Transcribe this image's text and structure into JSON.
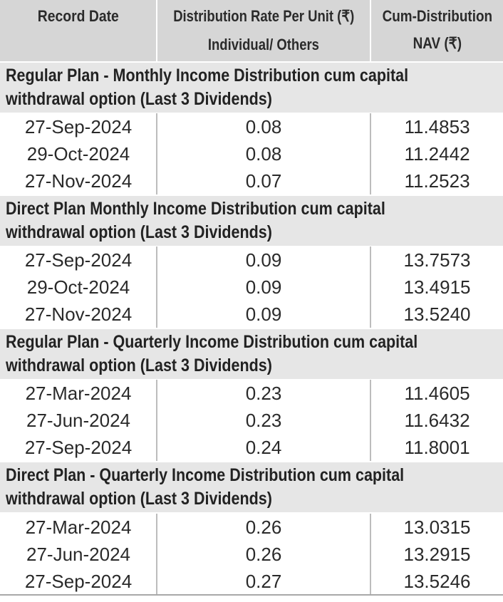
{
  "header": {
    "col1": "Record Date",
    "col2_line1": "Distribution Rate Per Unit  (₹)",
    "col2_line2": "Individual/ Others",
    "col3_line1": "Cum-Distribution",
    "col3_line2": "NAV (₹)"
  },
  "sections": [
    {
      "title_line1": "Regular Plan - Monthly Income Distribution cum capital",
      "title_line2": "withdrawal option (Last 3 Dividends)",
      "rows": [
        {
          "date": "27-Sep-2024",
          "rate": "0.08",
          "nav": "11.4853"
        },
        {
          "date": "29-Oct-2024",
          "rate": "0.08",
          "nav": "11.2442"
        },
        {
          "date": "27-Nov-2024",
          "rate": "0.07",
          "nav": "11.2523"
        }
      ]
    },
    {
      "title_line1": "Direct Plan Monthly Income Distribution cum capital",
      "title_line2": "withdrawal option (Last 3 Dividends)",
      "rows": [
        {
          "date": "27-Sep-2024",
          "rate": "0.09",
          "nav": "13.7573"
        },
        {
          "date": "29-Oct-2024",
          "rate": "0.09",
          "nav": "13.4915"
        },
        {
          "date": "27-Nov-2024",
          "rate": "0.09",
          "nav": "13.5240"
        }
      ]
    },
    {
      "title_line1": "Regular Plan - Quarterly Income Distribution cum capital",
      "title_line2": "withdrawal option (Last 3 Dividends)",
      "rows": [
        {
          "date": "27-Mar-2024",
          "rate": "0.23",
          "nav": "11.4605"
        },
        {
          "date": "27-Jun-2024",
          "rate": "0.23",
          "nav": "11.6432"
        },
        {
          "date": "27-Sep-2024",
          "rate": "0.24",
          "nav": "11.8001"
        }
      ]
    },
    {
      "title_line1": "Direct Plan - Quarterly Income Distribution cum capital",
      "title_line2": "withdrawal option (Last 3 Dividends)",
      "rows": [
        {
          "date": "27-Mar-2024",
          "rate": "0.26",
          "nav": "13.0315"
        },
        {
          "date": "27-Jun-2024",
          "rate": "0.26",
          "nav": "13.2915"
        },
        {
          "date": "27-Sep-2024",
          "rate": "0.27",
          "nav": "13.5246"
        }
      ]
    }
  ]
}
